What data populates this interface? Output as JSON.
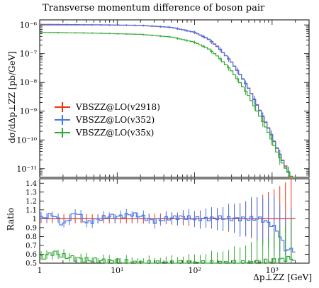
{
  "chart_data": [
    {
      "type": "line",
      "title": "Transverse momentum difference of boson pair",
      "xlabel": "",
      "ylabel": "dσ/dΔp⊥ZZ [pb/GeV]",
      "xscale": "log",
      "yscale": "log",
      "xlim": [
        1,
        3000
      ],
      "ylim": [
        5e-12,
        1.5e-06
      ],
      "x_tick_labels": [
        "1",
        "10¹",
        "10²",
        "10³"
      ],
      "y_tick_labels": [
        "10⁻⁶",
        "10⁻⁷",
        "10⁻⁸",
        "10⁻⁹",
        "10⁻¹⁰",
        "10⁻¹¹"
      ],
      "legend_position": "center-left",
      "series": [
        {
          "name": "VBSZZ@LO(v2918)",
          "color": "#ee3311",
          "x": [
            1,
            5,
            20,
            50,
            100,
            150,
            200,
            300,
            400,
            500,
            700,
            900,
            1200,
            1500,
            1800,
            2000
          ],
          "values": [
            1e-06,
            1e-06,
            9.6e-07,
            8.2e-07,
            5.5e-07,
            3.2e-07,
            1.7e-07,
            5e-08,
            1.6e-08,
            6e-09,
            1e-09,
            2.5e-10,
            4e-11,
            1.2e-11,
            4e-12,
            4e-12
          ]
        },
        {
          "name": "VBSZZ@LO(v352)",
          "color": "#4477ee",
          "x": [
            1,
            5,
            20,
            50,
            100,
            150,
            200,
            300,
            400,
            500,
            700,
            900,
            1200,
            1500,
            1800,
            2000
          ],
          "values": [
            1.05e-06,
            1.02e-06,
            9.7e-07,
            8.3e-07,
            5.6e-07,
            3.3e-07,
            1.75e-07,
            5.1e-08,
            1.65e-08,
            6.2e-09,
            1.05e-09,
            2.6e-10,
            4.2e-11,
            1.1e-11,
            5e-12,
            5e-12
          ]
        },
        {
          "name": "VBSZZ@LO(v35x)",
          "color": "#33aa33",
          "x": [
            1,
            5,
            20,
            50,
            100,
            150,
            200,
            300,
            400,
            500,
            700,
            900,
            1200,
            1500,
            1800,
            2000
          ],
          "values": [
            5.5e-07,
            5.2e-07,
            4.7e-07,
            3.8e-07,
            2.5e-07,
            1.5e-07,
            8e-08,
            2.5e-08,
            8.5e-09,
            3.4e-09,
            6.5e-10,
            1.8e-10,
            3e-11,
            1e-11,
            5e-12,
            5e-12
          ]
        }
      ]
    },
    {
      "type": "line",
      "title": "",
      "xlabel": "Δp⊥ZZ [GeV]",
      "ylabel": "Ratio",
      "xscale": "log",
      "xlim": [
        1,
        3000
      ],
      "ylim": [
        0.5,
        1.45
      ],
      "y_tick_labels": [
        "0.5",
        "0.6",
        "0.7",
        "0.8",
        "0.9",
        "1",
        "1.1",
        "1.2",
        "1.3",
        "1.4"
      ],
      "series": [
        {
          "name": "VBSZZ@LO(v2918)",
          "color": "#ee3311",
          "x": [
            1,
            10,
            100,
            1000,
            2000
          ],
          "values": [
            1.0,
            1.0,
            1.0,
            1.0,
            1.0
          ]
        },
        {
          "name": "VBSZZ@LO(v352)",
          "color": "#4477ee",
          "x": [
            1,
            1.5,
            2,
            3,
            4,
            6,
            8,
            10,
            15,
            20,
            30,
            50,
            70,
            100,
            150,
            200,
            300,
            500,
            700,
            1000,
            1200,
            1500
          ],
          "values": [
            1.0,
            1.05,
            0.93,
            1.08,
            0.95,
            1.0,
            1.03,
            1.02,
            1.05,
            1.03,
            0.97,
            1.01,
            1.02,
            1.0,
            1.0,
            1.01,
            1.0,
            1.0,
            1.0,
            0.93,
            0.85,
            0.65
          ]
        },
        {
          "name": "VBSZZ@LO(v35x)",
          "color": "#33aa33",
          "x": [
            1,
            1.5,
            2,
            3,
            5,
            10,
            20,
            50,
            100,
            200,
            500,
            1000,
            1500
          ],
          "values": [
            0.55,
            0.62,
            0.58,
            0.55,
            0.53,
            0.52,
            0.5,
            0.5,
            0.5,
            0.5,
            0.5,
            0.52,
            0.55
          ]
        }
      ]
    }
  ]
}
